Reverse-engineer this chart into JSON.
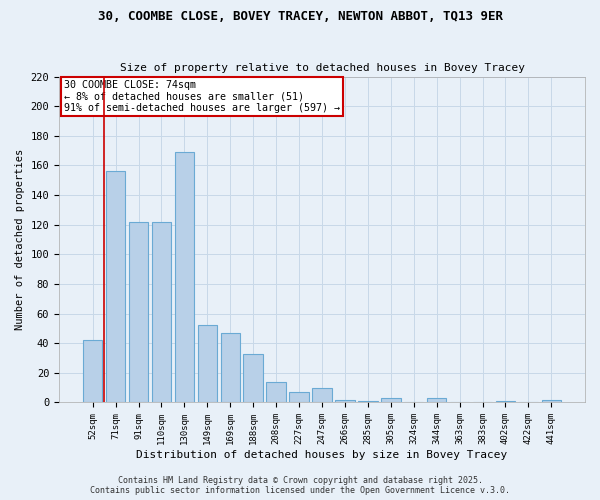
{
  "title": "30, COOMBE CLOSE, BOVEY TRACEY, NEWTON ABBOT, TQ13 9ER",
  "subtitle": "Size of property relative to detached houses in Bovey Tracey",
  "xlabel": "Distribution of detached houses by size in Bovey Tracey",
  "ylabel": "Number of detached properties",
  "bins": [
    "52sqm",
    "71sqm",
    "91sqm",
    "110sqm",
    "130sqm",
    "149sqm",
    "169sqm",
    "188sqm",
    "208sqm",
    "227sqm",
    "247sqm",
    "266sqm",
    "285sqm",
    "305sqm",
    "324sqm",
    "344sqm",
    "363sqm",
    "383sqm",
    "402sqm",
    "422sqm",
    "441sqm"
  ],
  "values": [
    42,
    156,
    122,
    122,
    169,
    52,
    47,
    33,
    14,
    7,
    10,
    2,
    1,
    3,
    0,
    3,
    0,
    0,
    1,
    0,
    2
  ],
  "bar_color": "#b8d0e8",
  "bar_edge_color": "#6aaad4",
  "grid_color": "#c8d8e8",
  "background_color": "#e8f0f8",
  "red_line_x": 0.5,
  "annotation_text": "30 COOMBE CLOSE: 74sqm\n← 8% of detached houses are smaller (51)\n91% of semi-detached houses are larger (597) →",
  "annotation_box_color": "#cc0000",
  "ylim": [
    0,
    220
  ],
  "yticks": [
    0,
    20,
    40,
    60,
    80,
    100,
    120,
    140,
    160,
    180,
    200,
    220
  ],
  "footer1": "Contains HM Land Registry data © Crown copyright and database right 2025.",
  "footer2": "Contains public sector information licensed under the Open Government Licence v.3.0."
}
